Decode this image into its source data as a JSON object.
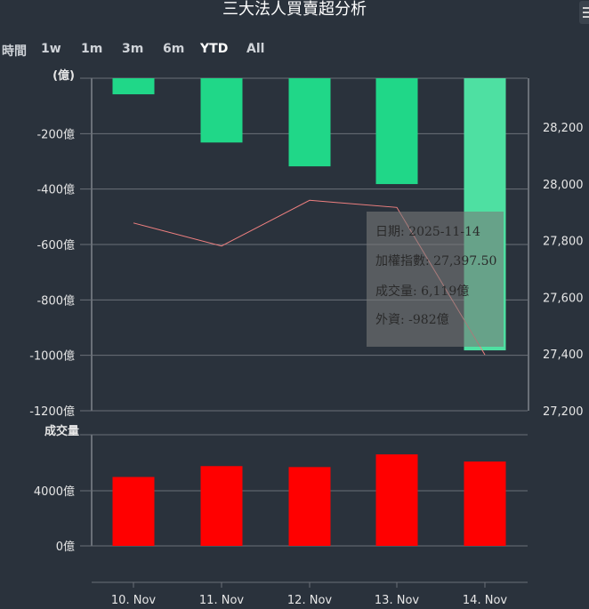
{
  "title": "三大法人買賣超分析",
  "range_selector": {
    "label": "時間",
    "buttons": [
      "1w",
      "1m",
      "3m",
      "6m",
      "YTD",
      "All"
    ],
    "selected": "YTD"
  },
  "chart_data": [
    {
      "type": "bar",
      "name": "foreign-net-buy-sell",
      "categories": [
        "10. Nov",
        "11. Nov",
        "12. Nov",
        "13. Nov",
        "14. Nov"
      ],
      "series": [
        {
          "name": "外資",
          "axis": "left",
          "color": "#20d788",
          "values": [
            -58,
            -232,
            -318,
            -382,
            -982
          ]
        },
        {
          "name": "加權指數",
          "type": "line",
          "axis": "right",
          "color": "#f08080",
          "values": [
            27862,
            27781,
            27942,
            27917,
            27397.5
          ]
        }
      ],
      "y_left": {
        "label": "(億)",
        "ylim": [
          -1200,
          0
        ],
        "ticks": [
          0,
          -200,
          -400,
          -600,
          -800,
          -1000,
          -1200
        ],
        "tick_suffix": "億"
      },
      "y_right": {
        "ylim": [
          27200,
          28400
        ],
        "ticks": [
          27200,
          27400,
          27600,
          27800,
          28000,
          28200
        ]
      }
    },
    {
      "type": "bar",
      "name": "volume",
      "categories": [
        "10. Nov",
        "11. Nov",
        "12. Nov",
        "13. Nov",
        "14. Nov"
      ],
      "series": [
        {
          "name": "成交量",
          "color": "#ff0000",
          "values": [
            5000,
            5790,
            5720,
            6640,
            6119
          ]
        }
      ],
      "y_left": {
        "label": "成交量",
        "ylim": [
          0,
          8000
        ],
        "ticks": [
          0,
          4000
        ],
        "tick_suffix": "億"
      }
    }
  ],
  "x_axis_labels": [
    "10. Nov",
    "11. Nov",
    "12. Nov",
    "13. Nov",
    "14. Nov"
  ],
  "tooltip": {
    "date": "日期: 2025-11-14",
    "index": "加權指數: 27,397.50",
    "volume": "成交量: 6,119億",
    "foreign": "外資: -982億"
  },
  "colors": {
    "background": "#2a323c",
    "net_bar": "#20d788",
    "net_bar_hover": "#4ee0a2",
    "volume_bar": "#ff0000",
    "index_line": "#f08080",
    "grid": "#6a7078"
  }
}
